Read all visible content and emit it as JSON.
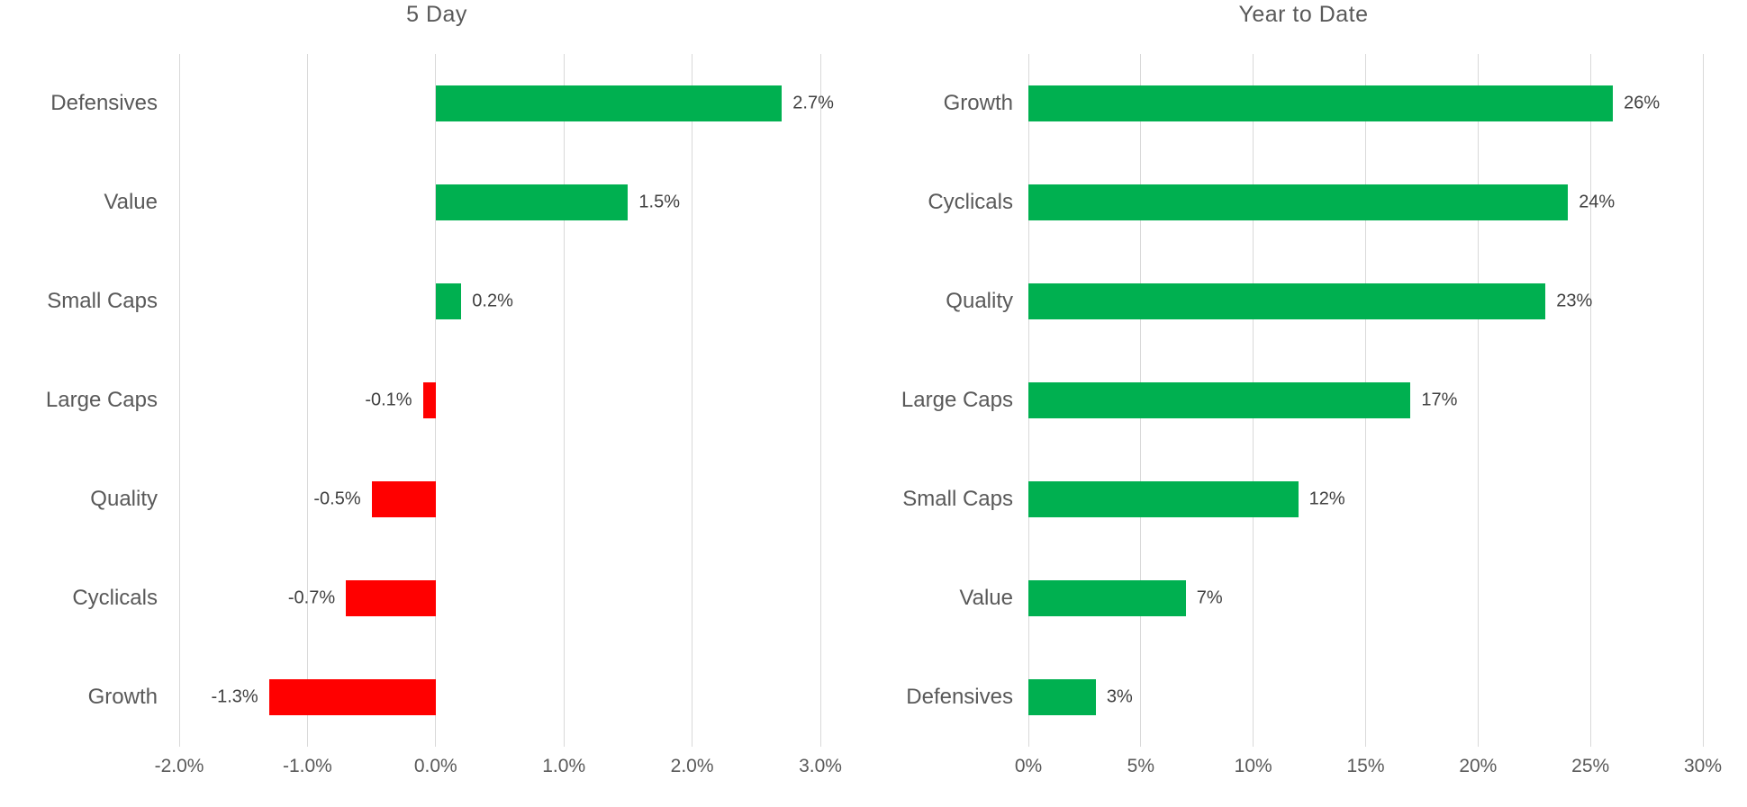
{
  "chart_data": [
    {
      "type": "bar",
      "orientation": "horizontal",
      "title": "5 Day",
      "categories": [
        "Defensives",
        "Value",
        "Small Caps",
        "Large Caps",
        "Quality",
        "Cyclicals",
        "Growth"
      ],
      "values": [
        2.7,
        1.5,
        0.2,
        -0.1,
        -0.5,
        -0.7,
        -1.3
      ],
      "value_labels": [
        "2.7%",
        "1.5%",
        "0.2%",
        "-0.1%",
        "-0.5%",
        "-0.7%",
        "-1.3%"
      ],
      "unit": "%",
      "xlim": [
        -2,
        3
      ],
      "ticks": [
        -2,
        -1,
        0,
        1,
        2,
        3
      ],
      "tick_labels": [
        "-2.0%",
        "-1.0%",
        "0.0%",
        "1.0%",
        "2.0%",
        "3.0%"
      ],
      "grid": true,
      "legend": "none",
      "positive_color": "#00B050",
      "negative_color": "#FF0000"
    },
    {
      "type": "bar",
      "orientation": "horizontal",
      "title": "Year to Date",
      "categories": [
        "Growth",
        "Cyclicals",
        "Quality",
        "Large Caps",
        "Small Caps",
        "Value",
        "Defensives"
      ],
      "values": [
        26,
        24,
        23,
        17,
        12,
        7,
        3
      ],
      "value_labels": [
        "26%",
        "24%",
        "23%",
        "17%",
        "12%",
        "7%",
        "3%"
      ],
      "unit": "%",
      "xlim": [
        0,
        30
      ],
      "ticks": [
        0,
        5,
        10,
        15,
        20,
        25,
        30
      ],
      "tick_labels": [
        "0%",
        "5%",
        "10%",
        "15%",
        "20%",
        "25%",
        "30%"
      ],
      "grid": true,
      "legend": "none",
      "positive_color": "#00B050",
      "negative_color": "#FF0000"
    }
  ],
  "style": {
    "background": "#FFFFFF",
    "grid_color": "#D9D9D9",
    "title_color": "#595959",
    "axis_text_color": "#595959",
    "category_text_color": "#595959",
    "value_text_color": "#404040"
  }
}
